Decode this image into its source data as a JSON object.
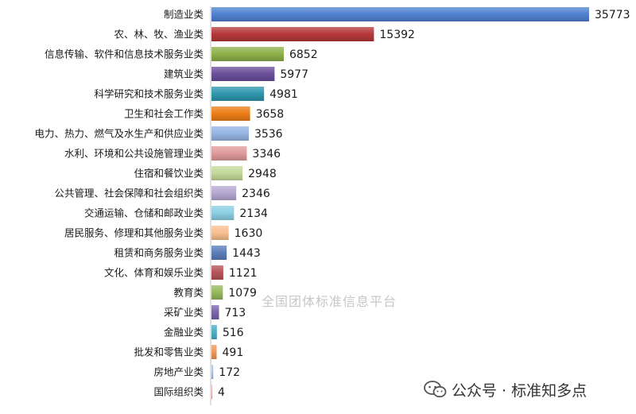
{
  "chart_data": {
    "type": "bar",
    "orientation": "horizontal",
    "categories": [
      "制造业类",
      "农、林、牧、渔业类",
      "信息传输、软件和信息技术服务业类",
      "建筑业类",
      "科学研究和技术服务业类",
      "卫生和社会工作类",
      "电力、热力、燃气及水生产和供应业类",
      "水利、环境和公共设施管理业类",
      "住宿和餐饮业类",
      "公共管理、社会保障和社会组织类",
      "交通运输、仓储和邮政业类",
      "居民服务、修理和其他服务业类",
      "租赁和商务服务业类",
      "文化、体育和娱乐业类",
      "教育类",
      "采矿业类",
      "金融业类",
      "批发和零售业类",
      "房地产业类",
      "国际组织类"
    ],
    "values": [
      35773,
      15392,
      6852,
      5977,
      4981,
      3658,
      3536,
      3346,
      2948,
      2346,
      2134,
      1630,
      1443,
      1121,
      1079,
      713,
      516,
      491,
      172,
      4
    ],
    "colors": [
      "#4f81d0",
      "#b5383a",
      "#8db04a",
      "#6a4f9b",
      "#2f96ad",
      "#ec7d16",
      "#93b4e3",
      "#e09a9b",
      "#c4d99b",
      "#b6a7d2",
      "#8ccfe3",
      "#f9bf8f",
      "#5b7dba",
      "#b65457",
      "#94ba5c",
      "#7a64a8",
      "#4bafc4",
      "#ef975a",
      "#a9c3ea",
      "#e8a7a8"
    ],
    "xlim": [
      0,
      35773
    ],
    "grid": false,
    "legend": "none"
  },
  "watermark": "全国团体标准信息平台",
  "brand": {
    "icon": "wechat-icon",
    "text": "公众号 · 标准知多点"
  }
}
